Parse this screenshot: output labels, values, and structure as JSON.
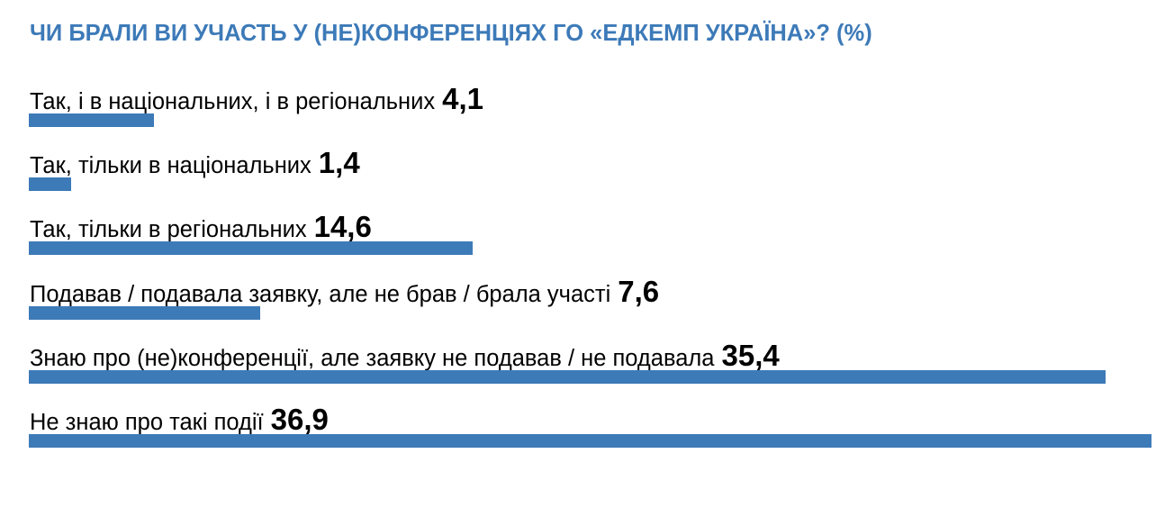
{
  "chart_data": {
    "type": "bar",
    "orientation": "horizontal",
    "title": "ЧИ БРАЛИ ВИ УЧАСТЬ У (НЕ)КОНФЕРЕНЦІЯХ ГО «ЕДКЕМП УКРАЇНА»? (%)",
    "categories": [
      "Так, і в національних, і в регіональних",
      "Так, тільки в національних",
      "Так, тільки в регіональних",
      "Подавав / подавала заявку, але не брав / брала участі",
      "Знаю про (не)конференції, але заявку не подавав / не подавала",
      "Не знаю про такі події"
    ],
    "values": [
      4.1,
      1.4,
      14.6,
      7.6,
      35.4,
      36.9
    ],
    "value_labels": [
      "4,1",
      "1,4",
      "14,6",
      "7,6",
      "35,4",
      "36,9"
    ],
    "xlim": [
      0,
      36.9
    ],
    "grid": false,
    "legend": "none",
    "colors": {
      "bar": "#3d7ab8",
      "title": "#3d7ab8",
      "text": "#000000"
    }
  }
}
